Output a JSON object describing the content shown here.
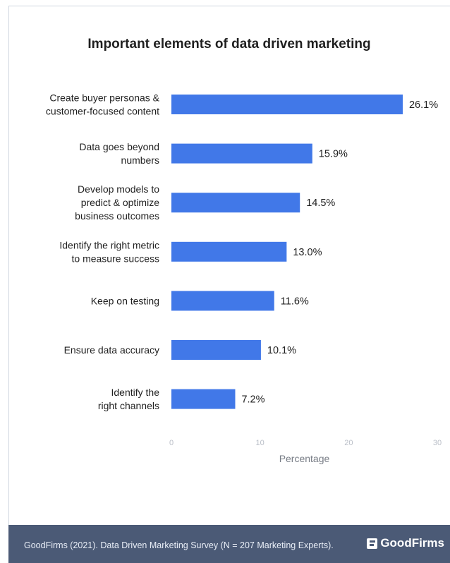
{
  "colors": {
    "bar": "#4178e8",
    "footer_bg": "#4b5a76",
    "axis_text": "#b9bec7",
    "label_text": "#1f1f1f"
  },
  "chart_data": {
    "type": "bar",
    "orientation": "horizontal",
    "title": "Important elements of data driven marketing",
    "xlabel": "Percentage",
    "ylabel": "",
    "xlim": [
      0,
      30
    ],
    "xticks": [
      "0",
      "10",
      "20",
      "30"
    ],
    "grid": false,
    "categories": [
      [
        "Create buyer personas &",
        "customer-focused content"
      ],
      [
        "Data goes beyond",
        "numbers"
      ],
      [
        "Develop models to",
        "predict & optimize",
        "business outcomes"
      ],
      [
        "Identify the right metric",
        "to measure success"
      ],
      [
        "Keep on testing"
      ],
      [
        "Ensure data accuracy"
      ],
      [
        "Identify the",
        "right channels"
      ]
    ],
    "values": [
      26.1,
      15.9,
      14.5,
      13.0,
      11.6,
      10.1,
      7.2
    ],
    "value_labels": [
      "26.1%",
      "15.9%",
      "14.5%",
      "13.0%",
      "11.6%",
      "10.1%",
      "7.2%"
    ]
  },
  "footer": {
    "source": "GoodFirms (2021). Data Driven Marketing Survey (N = 207 Marketing Experts).",
    "brand": "GoodFirms"
  }
}
